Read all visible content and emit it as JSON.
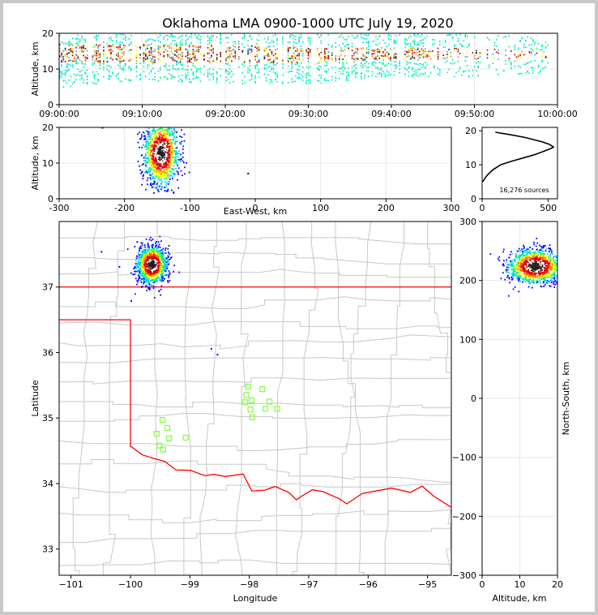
{
  "title": "Oklahoma LMA 0900-1000 UTC July 19, 2020",
  "colors": {
    "frame": "#c8c8c8",
    "state_lines": "#ff0000",
    "county_lines": "#c8c8c8",
    "stations": "#7fff3a",
    "density_colormap": [
      "#0000ff",
      "#00c8ff",
      "#00ff64",
      "#ffff00",
      "#ff8000",
      "#ff0000",
      "#c00000",
      "#ffffff",
      "#202020"
    ]
  },
  "source_count_label": "16,276 sources",
  "chart_data": [
    {
      "id": "time_height",
      "type": "heatmap",
      "xlabel": "",
      "ylabel": "Altitude, km",
      "x_ticks": [
        "09:00:00",
        "09:10:00",
        "09:20:00",
        "09:30:00",
        "09:40:00",
        "09:50:00",
        "10:00:00"
      ],
      "xlim_minutes": [
        0,
        60
      ],
      "ylim": [
        0,
        20
      ],
      "y_ticks": [
        0,
        10,
        20
      ],
      "grid": true,
      "bins": [
        {
          "x": 0,
          "low": 5,
          "high": 20,
          "core": [
            12,
            17
          ]
        },
        {
          "x": 5,
          "low": 6,
          "high": 20,
          "core": [
            12,
            17
          ]
        },
        {
          "x": 10,
          "low": 7,
          "high": 20,
          "core": [
            12,
            17
          ]
        },
        {
          "x": 20,
          "low": 6,
          "high": 20,
          "core": [
            12,
            17
          ]
        },
        {
          "x": 30,
          "low": 6,
          "high": 20,
          "core": [
            12,
            16
          ]
        },
        {
          "x": 40,
          "low": 8,
          "high": 20,
          "core": [
            13,
            16
          ]
        },
        {
          "x": 50,
          "low": 8,
          "high": 20,
          "core": [
            13,
            16
          ]
        },
        {
          "x": 58,
          "low": 9,
          "high": 19,
          "core": [
            13,
            15
          ]
        }
      ]
    },
    {
      "id": "ew_height",
      "type": "scatter",
      "xlabel": "East-West, km",
      "ylabel": "Altitude, km",
      "xlim": [
        -300,
        300
      ],
      "ylim": [
        0,
        20
      ],
      "x_ticks": [
        -300,
        -200,
        -100,
        0,
        100,
        200,
        300
      ],
      "y_ticks": [
        0,
        10,
        20
      ],
      "grid": true,
      "clusters": [
        {
          "x": -145,
          "y": 13,
          "sx": 13,
          "sy": 4.5,
          "count": 1200
        }
      ]
    },
    {
      "id": "altitude_histogram",
      "type": "line",
      "xlabel": "",
      "ylabel": "",
      "xlim": [
        0,
        570
      ],
      "ylim": [
        0,
        21
      ],
      "x_ticks": [
        0,
        500
      ],
      "y_ticks": [
        0,
        10,
        20
      ],
      "x": [
        5,
        20,
        40,
        80,
        140,
        220,
        310,
        400,
        470,
        520,
        540,
        510,
        450,
        330,
        220,
        140,
        100
      ],
      "y": [
        5,
        6,
        7,
        8.5,
        10,
        11,
        12,
        13,
        14,
        14.8,
        15.2,
        16,
        16.8,
        18,
        18.8,
        19.3,
        19.6
      ]
    },
    {
      "id": "plan_view",
      "type": "scatter",
      "xlabel": "Longitude",
      "ylabel": "Latitude",
      "xlim": [
        -101.2,
        -94.6
      ],
      "ylim": [
        32.6,
        38.0
      ],
      "x_ticks": [
        -101,
        -100,
        -99,
        -98,
        -97,
        -96,
        -95
      ],
      "y_ticks": [
        33,
        34,
        35,
        36,
        37
      ],
      "clusters": [
        {
          "lon": -99.65,
          "lat": 37.35,
          "slon": 0.12,
          "slat": 0.14,
          "count": 1300
        }
      ],
      "isolated_sources": [
        {
          "lon": -100.5,
          "lat": 37.55
        },
        {
          "lon": -100.2,
          "lat": 37.32
        },
        {
          "lon": -99.9,
          "lat": 37.7
        },
        {
          "lon": -100.0,
          "lat": 36.8
        },
        {
          "lon": -98.65,
          "lat": 36.07
        },
        {
          "lon": -98.55,
          "lat": 35.98
        }
      ],
      "stations": [
        {
          "lon": -98.02,
          "lat": 35.48
        },
        {
          "lon": -97.78,
          "lat": 35.44
        },
        {
          "lon": -98.05,
          "lat": 35.35
        },
        {
          "lon": -98.07,
          "lat": 35.24
        },
        {
          "lon": -97.96,
          "lat": 35.27
        },
        {
          "lon": -97.66,
          "lat": 35.25
        },
        {
          "lon": -97.98,
          "lat": 35.13
        },
        {
          "lon": -97.73,
          "lat": 35.14
        },
        {
          "lon": -97.53,
          "lat": 35.14
        },
        {
          "lon": -97.95,
          "lat": 35.01
        },
        {
          "lon": -99.46,
          "lat": 34.97
        },
        {
          "lon": -99.38,
          "lat": 34.85
        },
        {
          "lon": -99.56,
          "lat": 34.76
        },
        {
          "lon": -99.35,
          "lat": 34.69
        },
        {
          "lon": -99.07,
          "lat": 34.7
        },
        {
          "lon": -99.51,
          "lat": 34.58
        },
        {
          "lon": -99.45,
          "lat": 34.52
        }
      ]
    },
    {
      "id": "height_ns",
      "type": "scatter",
      "xlabel": "Altitude, km",
      "ylabel": "North-South, km",
      "xlim": [
        0,
        20
      ],
      "ylim": [
        -300,
        300
      ],
      "x_ticks": [
        0,
        10,
        20
      ],
      "y_ticks": [
        -300,
        -200,
        -100,
        0,
        100,
        200,
        300
      ],
      "clusters": [
        {
          "x": 14,
          "y": 225,
          "sx": 3.6,
          "sy": 14,
          "count": 1300
        }
      ]
    }
  ]
}
